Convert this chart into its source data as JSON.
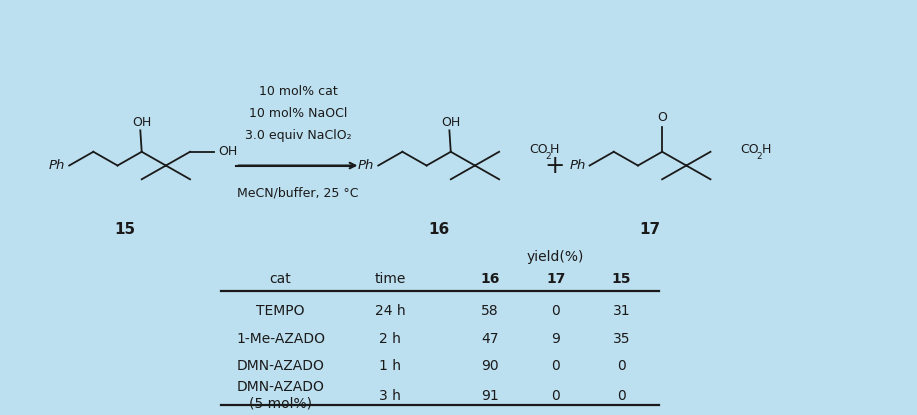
{
  "background_color": "#bde0f0",
  "table": {
    "yield_header": "yield(%)",
    "col_headers": [
      "cat",
      "time",
      "16",
      "17",
      "15"
    ],
    "col_headers_bold": [
      false,
      false,
      true,
      true,
      true
    ],
    "rows": [
      [
        "TEMPO",
        "24 h",
        "58",
        "0",
        "31"
      ],
      [
        "1-Me-AZADO",
        "2 h",
        "47",
        "9",
        "35"
      ],
      [
        "DMN-AZADO",
        "1 h",
        "90",
        "0",
        "0"
      ],
      [
        "DMN-AZADO\n(5 mol%)",
        "3 h",
        "91",
        "0",
        "0"
      ]
    ]
  },
  "conditions": [
    "10 mol% cat",
    "10 mol% NaOCl",
    "3.0 equiv NaClO₂",
    "MeCN/buffer, 25 °C"
  ],
  "labels": [
    "15",
    "16",
    "17"
  ],
  "bond_color": "#1a1a1a",
  "text_color": "#1a1a1a",
  "font_size_chem": 9.5,
  "font_size_table": 10
}
